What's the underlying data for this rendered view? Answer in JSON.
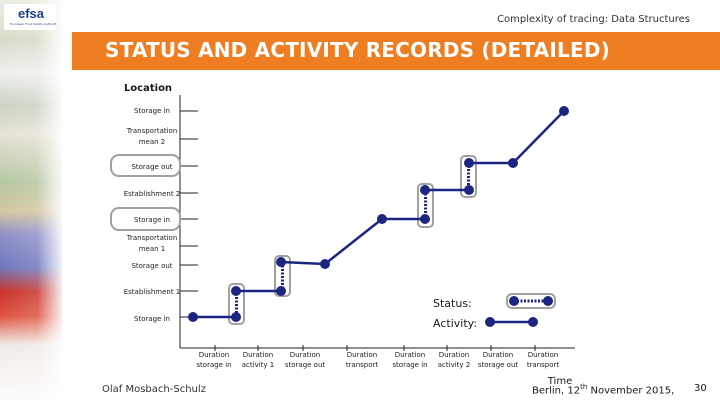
{
  "header": {
    "logo_text": "efsa",
    "logo_subtitle": "European Food Safety Authority",
    "subtitle": "Complexity of tracing: Data Structures"
  },
  "banner": {
    "title": "STATUS AND ACTIVITY RECORDS (DETAILED)"
  },
  "diagram": {
    "y_axis_title": "Location",
    "x_axis_title": "Time",
    "y_labels": [
      [
        "Storage in"
      ],
      [
        "Transportation",
        "mean 2"
      ],
      [
        "Storage out"
      ],
      [
        "Establishment 2"
      ],
      [
        "Storage in"
      ],
      [
        "Transportation",
        "mean 1"
      ],
      [
        "Storage out"
      ],
      [
        "Establishment 1"
      ],
      [
        "Storage in"
      ]
    ],
    "x_labels": [
      [
        "Duration",
        "storage in"
      ],
      [
        "Duration",
        "activity 1"
      ],
      [
        "Duration",
        "storage out"
      ],
      [
        "Duration",
        "transport"
      ],
      [
        "Duration",
        "storage in"
      ],
      [
        "Duration",
        "activity 2"
      ],
      [
        "Duration",
        "storage out"
      ],
      [
        "Duration",
        "transport"
      ]
    ],
    "legend": {
      "status_label": "Status:",
      "activity_label": "Activity:"
    },
    "colors": {
      "line": "#1c2580",
      "box": "#a0a0a0",
      "dot": "#1c2580"
    }
  },
  "footer": {
    "name": "Olaf Mosbach-Schulz",
    "date_prefix": "Berlin, 12",
    "date_sup": "th",
    "date_suffix": " November 2015,",
    "page": "30"
  }
}
